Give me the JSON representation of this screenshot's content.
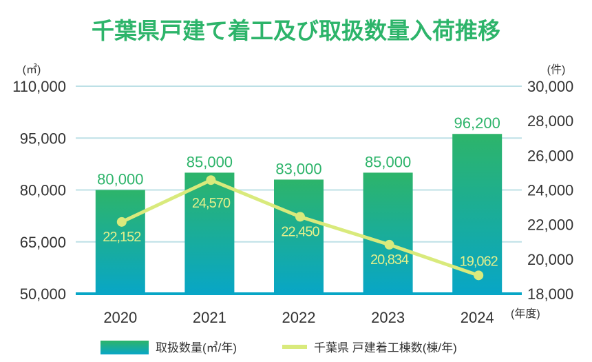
{
  "chart_data": {
    "type": "bar+line",
    "title": "千葉県戸建て着工及び取扱数量入荷推移",
    "categories": [
      "2020",
      "2021",
      "2022",
      "2023",
      "2024"
    ],
    "xlabel": "(年度)",
    "left_axis": {
      "unit": "(㎥)",
      "ylim": [
        50000,
        110000
      ],
      "ticks": [
        50000,
        65000,
        80000,
        95000,
        110000
      ],
      "tick_labels": [
        "50,000",
        "65,000",
        "80,000",
        "95,000",
        "110,000"
      ]
    },
    "right_axis": {
      "unit": "(件)",
      "ylim": [
        18000,
        30000
      ],
      "ticks": [
        18000,
        20000,
        22000,
        24000,
        26000,
        28000,
        30000
      ],
      "tick_labels": [
        "18,000",
        "20,000",
        "22,000",
        "24,000",
        "26,000",
        "28,000",
        "30,000"
      ]
    },
    "grid": true,
    "legend_placement": "bottom",
    "series": [
      {
        "name": "取扱数量(㎥/年)",
        "type": "bar",
        "axis": "left",
        "values": [
          80000,
          85000,
          83000,
          85000,
          96200
        ],
        "labels": [
          "80,000",
          "85,000",
          "83,000",
          "85,000",
          "96,200"
        ],
        "color_top": "#2db46a",
        "color_bottom": "#08a6c6"
      },
      {
        "name": "千葉県 戸建着工棟数(棟/年)",
        "type": "line",
        "axis": "right",
        "values": [
          22152,
          24570,
          22450,
          20834,
          19062
        ],
        "labels": [
          "22,152",
          "24,570",
          "22,450",
          "20,834",
          "19,062"
        ],
        "color": "#d9ea7c"
      }
    ],
    "colors": {
      "title": "#2db46a",
      "grid": "#bde0e6",
      "baseline": "#08a6c6",
      "text": "#333333"
    }
  }
}
